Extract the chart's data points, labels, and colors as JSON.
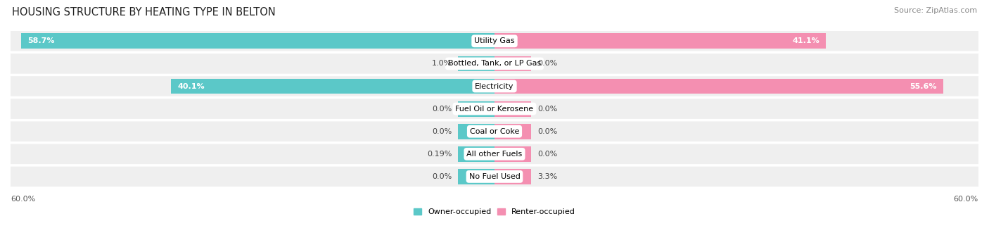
{
  "title": "HOUSING STRUCTURE BY HEATING TYPE IN BELTON",
  "source": "Source: ZipAtlas.com",
  "categories": [
    "Utility Gas",
    "Bottled, Tank, or LP Gas",
    "Electricity",
    "Fuel Oil or Kerosene",
    "Coal or Coke",
    "All other Fuels",
    "No Fuel Used"
  ],
  "owner_values": [
    58.7,
    1.0,
    40.1,
    0.0,
    0.0,
    0.19,
    0.0
  ],
  "renter_values": [
    41.1,
    0.0,
    55.6,
    0.0,
    0.0,
    0.0,
    3.3
  ],
  "owner_color": "#5BC8C8",
  "renter_color": "#F48FB1",
  "owner_label": "Owner-occupied",
  "renter_label": "Renter-occupied",
  "axis_max": 60.0,
  "min_bar_width": 4.5,
  "bg_color": "#FFFFFF",
  "row_bg_color": "#EFEFEF",
  "row_gap_color": "#FFFFFF",
  "title_fontsize": 10.5,
  "bar_label_fontsize": 8,
  "cat_label_fontsize": 8,
  "source_fontsize": 8
}
